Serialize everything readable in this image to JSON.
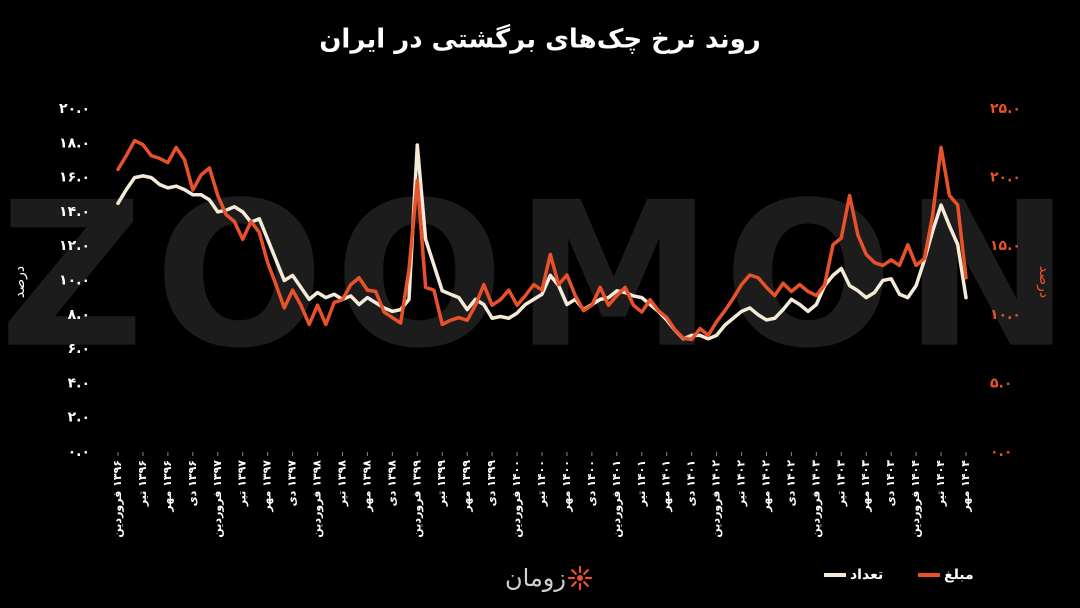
{
  "chart_data": {
    "type": "line",
    "title": "روند نرخ چک‌های برگشتی در ایران",
    "watermark": "ZOOMON",
    "brand": "زومان",
    "ylabel": "درصد",
    "y2label": "درصد",
    "ylim": [
      0,
      20
    ],
    "yticks": [
      {
        "value": 0,
        "label": "۰.۰"
      },
      {
        "value": 2,
        "label": "۲.۰"
      },
      {
        "value": 4,
        "label": "۴.۰"
      },
      {
        "value": 6,
        "label": "۶.۰"
      },
      {
        "value": 8,
        "label": "۸.۰"
      },
      {
        "value": 10,
        "label": "۱۰.۰"
      },
      {
        "value": 12,
        "label": "۱۲.۰"
      },
      {
        "value": 14,
        "label": "۱۴.۰"
      },
      {
        "value": 16,
        "label": "۱۶.۰"
      },
      {
        "value": 18,
        "label": "۱۸.۰"
      },
      {
        "value": 20,
        "label": "۲۰.۰"
      }
    ],
    "y2lim": [
      0,
      25
    ],
    "y2ticks": [
      {
        "value": 0,
        "label": "۰.۰"
      },
      {
        "value": 5,
        "label": "۵.۰"
      },
      {
        "value": 10,
        "label": "۱۰.۰"
      },
      {
        "value": 15,
        "label": "۱۵.۰"
      },
      {
        "value": 20,
        "label": "۲۰.۰"
      },
      {
        "value": 25,
        "label": "۲۵.۰"
      }
    ],
    "categories": [
      "۱۳۹۶ فروردین",
      null,
      null,
      "۱۳۹۶ تیر",
      null,
      null,
      "۱۳۹۶ مهر",
      null,
      null,
      "۱۳۹۶ دی",
      null,
      null,
      "۱۳۹۷ فروردین",
      null,
      null,
      "۱۳۹۷ تیر",
      null,
      null,
      "۱۳۹۷ مهر",
      null,
      null,
      "۱۳۹۷ دی",
      null,
      null,
      "۱۳۹۸ فروردین",
      null,
      null,
      "۱۳۹۸ تیر",
      null,
      null,
      "۱۳۹۸ مهر",
      null,
      null,
      "۱۳۹۸ دی",
      null,
      null,
      "۱۳۹۹ فروردین",
      null,
      null,
      "۱۳۹۹ تیر",
      null,
      null,
      "۱۳۹۹ مهر",
      null,
      null,
      "۱۳۹۹ دی",
      null,
      null,
      "۱۴۰۰ فروردین",
      null,
      null,
      "۱۴۰۰ تیر",
      null,
      null,
      "۱۴۰۰ مهر",
      null,
      null,
      "۱۴۰۰ دی",
      null,
      null,
      "۱۴۰۱ فروردین",
      null,
      null,
      "۱۴۰۱ تیر",
      null,
      null,
      "۱۴۰۱ مهر",
      null,
      null,
      "۱۴۰۱ دی",
      null,
      null,
      "۱۴۰۲ فروردین",
      null,
      null,
      "۱۴۰۲ تیر",
      null,
      null,
      "۱۴۰۲ مهر",
      null,
      null,
      "۱۴۰۲ دی",
      null,
      null,
      "۱۴۰۳ فروردین",
      null,
      null,
      "۱۴۰۳ تیر",
      null,
      null,
      "۱۴۰۳ مهر",
      null,
      null,
      "۱۴۰۳ دی",
      null,
      null,
      "۱۴۰۴ فروردین",
      null,
      null,
      "۱۴۰۴ تیر",
      null,
      null,
      "۱۴۰۴ مهر"
    ],
    "series": [
      {
        "name": "تعداد",
        "color": "#f3ead8",
        "axis": "y",
        "values": [
          14.5,
          15.3,
          16.0,
          16.1,
          16.0,
          15.6,
          15.4,
          15.5,
          15.3,
          15.0,
          15.0,
          14.7,
          14.0,
          14.1,
          14.3,
          14.0,
          13.4,
          13.6,
          12.4,
          11.2,
          10.0,
          10.3,
          9.6,
          8.9,
          9.3,
          9.0,
          9.2,
          8.9,
          9.1,
          8.6,
          9.0,
          8.7,
          8.4,
          8.2,
          8.3,
          8.9,
          17.9,
          12.4,
          10.9,
          9.4,
          9.2,
          9.0,
          8.3,
          8.9,
          8.6,
          7.8,
          7.9,
          7.8,
          8.1,
          8.6,
          8.9,
          9.2,
          10.3,
          9.7,
          8.6,
          8.9,
          8.3,
          8.6,
          8.9,
          9.0,
          9.4,
          9.3,
          9.1,
          9.0,
          8.6,
          8.2,
          7.7,
          7.1,
          6.6,
          6.8,
          6.8,
          6.6,
          6.8,
          7.4,
          7.8,
          8.2,
          8.4,
          8.0,
          7.7,
          7.8,
          8.3,
          8.9,
          8.6,
          8.2,
          8.6,
          9.7,
          10.3,
          10.7,
          9.7,
          9.4,
          9.0,
          9.3,
          10.0,
          10.1,
          9.2,
          9.0,
          9.7,
          11.2,
          12.9,
          14.4,
          13.2,
          12.1,
          9.0
        ]
      },
      {
        "name": "مبلغ",
        "color": "#e8512a",
        "axis": "y2",
        "values": [
          20.6,
          21.6,
          22.7,
          22.4,
          21.6,
          21.4,
          21.1,
          22.2,
          21.3,
          19.1,
          20.2,
          20.7,
          18.7,
          17.3,
          16.8,
          15.5,
          16.8,
          16.0,
          13.8,
          12.2,
          10.5,
          11.8,
          10.7,
          9.3,
          10.7,
          9.3,
          10.9,
          11.1,
          12.2,
          12.7,
          11.8,
          11.7,
          10.2,
          9.8,
          9.4,
          13.3,
          19.8,
          12.0,
          11.8,
          9.3,
          9.6,
          9.8,
          9.6,
          10.7,
          12.2,
          10.7,
          11.1,
          11.8,
          10.7,
          11.4,
          12.2,
          11.8,
          14.4,
          12.2,
          12.9,
          11.4,
          10.3,
          10.7,
          12.0,
          10.7,
          11.4,
          12.0,
          10.7,
          10.2,
          11.1,
          10.3,
          9.8,
          8.9,
          8.3,
          8.2,
          9.0,
          8.5,
          9.5,
          10.3,
          11.2,
          12.2,
          12.9,
          12.7,
          12.0,
          11.4,
          12.3,
          11.7,
          12.2,
          11.7,
          11.4,
          12.2,
          15.1,
          15.6,
          18.7,
          15.8,
          14.4,
          13.8,
          13.6,
          14.0,
          13.6,
          15.1,
          13.6,
          14.1,
          17.3,
          22.2,
          18.7,
          18.0,
          12.7
        ]
      }
    ]
  }
}
